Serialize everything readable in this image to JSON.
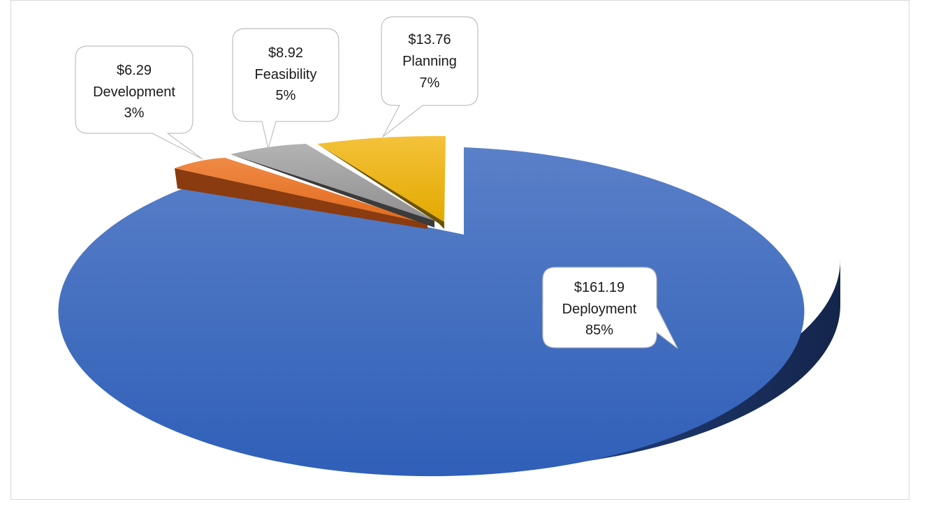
{
  "chart_data": {
    "type": "pie",
    "title": "",
    "slices": [
      {
        "category": "Deployment",
        "value": 161.19,
        "value_label": "$161.19",
        "percent_label": "85%",
        "color": "#4472C4"
      },
      {
        "category": "Development",
        "value": 6.29,
        "value_label": "$6.29",
        "percent_label": "3%",
        "color": "#ED7D31"
      },
      {
        "category": "Feasibility",
        "value": 8.92,
        "value_label": "$8.92",
        "percent_label": "5%",
        "color": "#A5A5A5"
      },
      {
        "category": "Planning",
        "value": 13.76,
        "value_label": "$13.76",
        "percent_label": "7%",
        "color": "#FFC000"
      }
    ],
    "legend": "none",
    "style": "3d-exploded"
  }
}
